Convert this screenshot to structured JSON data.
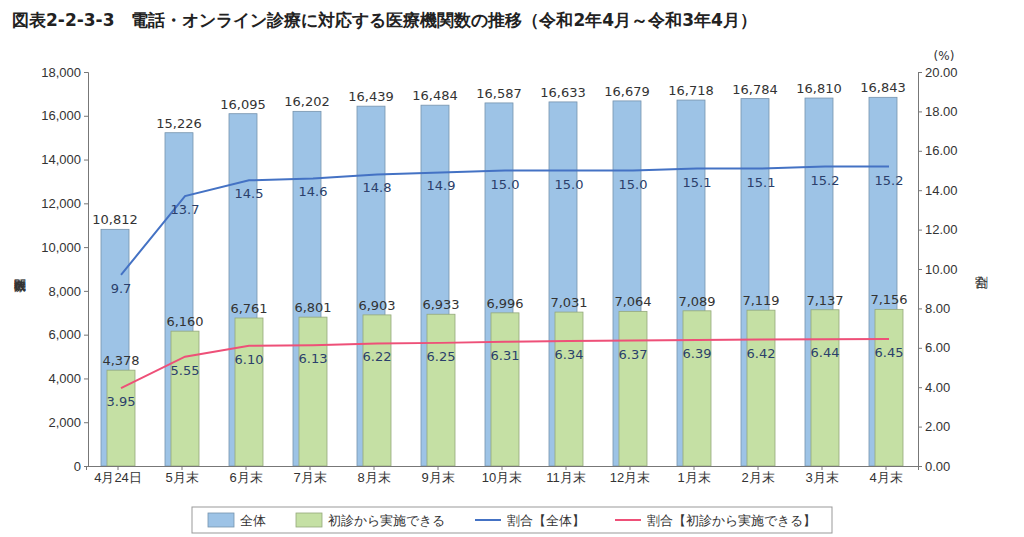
{
  "chart_data": {
    "type": "bar",
    "title": "図表2-2-3-3　電話・オンライン診療に対応する医療機関数の推移（令和2年4月～令和3年4月）",
    "ylabel": "医療機関数",
    "y2label": "割合",
    "annotations": [
      "(%)"
    ],
    "categories": [
      "4月24日",
      "5月末",
      "6月末",
      "7月末",
      "8月末",
      "9月末",
      "10月末",
      "11月末",
      "12月末",
      "1月末",
      "2月末",
      "3月末",
      "4月末"
    ],
    "series": [
      {
        "name": "全体",
        "type": "bar",
        "color": "#9dc3e6",
        "values": [
          10812,
          15226,
          16095,
          16202,
          16439,
          16484,
          16587,
          16633,
          16679,
          16718,
          16784,
          16810,
          16843
        ],
        "value_labels": [
          "10,812",
          "15,226",
          "16,095",
          "16,202",
          "16,439",
          "16,484",
          "16,587",
          "16,633",
          "16,679",
          "16,718",
          "16,784",
          "16,810",
          "16,843"
        ]
      },
      {
        "name": "初診から実施できる",
        "type": "bar",
        "color": "#c5e0a4",
        "values": [
          4378,
          6160,
          6761,
          6801,
          6903,
          6933,
          6996,
          7031,
          7064,
          7089,
          7119,
          7137,
          7156
        ],
        "value_labels": [
          "4,378",
          "6,160",
          "6,761",
          "6,801",
          "6,903",
          "6,933",
          "6,996",
          "7,031",
          "7,064",
          "7,089",
          "7,119",
          "7,137",
          "7,156"
        ]
      },
      {
        "name": "割合【全体】",
        "type": "line",
        "axis": "y2",
        "color": "#4472c4",
        "values": [
          9.7,
          13.7,
          14.5,
          14.6,
          14.8,
          14.9,
          15.0,
          15.0,
          15.0,
          15.1,
          15.1,
          15.2,
          15.2
        ],
        "value_labels": [
          "9.7",
          "13.7",
          "14.5",
          "14.6",
          "14.8",
          "14.9",
          "15.0",
          "15.0",
          "15.0",
          "15.1",
          "15.1",
          "15.2",
          "15.2"
        ]
      },
      {
        "name": "割合【初診から実施できる】",
        "type": "line",
        "axis": "y2",
        "color": "#ee5078",
        "values": [
          3.95,
          5.55,
          6.1,
          6.13,
          6.22,
          6.25,
          6.31,
          6.34,
          6.37,
          6.39,
          6.42,
          6.44,
          6.45
        ],
        "value_labels": [
          "3.95",
          "5.55",
          "6.10",
          "6.13",
          "6.22",
          "6.25",
          "6.31",
          "6.34",
          "6.37",
          "6.39",
          "6.42",
          "6.44",
          "6.45"
        ]
      }
    ],
    "ylim": [
      0,
      18000
    ],
    "yticks": [
      0,
      {
        "value": 2000,
        "label": "2,000"
      },
      {
        "value": 4000,
        "label": "4,000"
      },
      {
        "value": 6000,
        "label": "6,000"
      },
      {
        "value": 8000,
        "label": "8,000"
      },
      {
        "value": 10000,
        "label": "10,000"
      },
      {
        "value": 12000,
        "label": "12,000"
      },
      {
        "value": 14000,
        "label": "14,000"
      },
      {
        "value": 16000,
        "label": "16,000"
      },
      {
        "value": 18000,
        "label": "18,000"
      }
    ],
    "y2lim": [
      0,
      20
    ],
    "y2ticks": [
      {
        "value": 0,
        "label": "0.00"
      },
      {
        "value": 2,
        "label": "2.00"
      },
      {
        "value": 4,
        "label": "4.00"
      },
      {
        "value": 6,
        "label": "6.00"
      },
      {
        "value": 8,
        "label": "8.00"
      },
      {
        "value": 10,
        "label": "10.00"
      },
      {
        "value": 12,
        "label": "12.00"
      },
      {
        "value": 14,
        "label": "14.00"
      },
      {
        "value": 16,
        "label": "16.00"
      },
      {
        "value": 18,
        "label": "18.00"
      },
      {
        "value": 20,
        "label": "20.00"
      }
    ],
    "grid": false,
    "legend": "bottom",
    "data_labels": true
  }
}
